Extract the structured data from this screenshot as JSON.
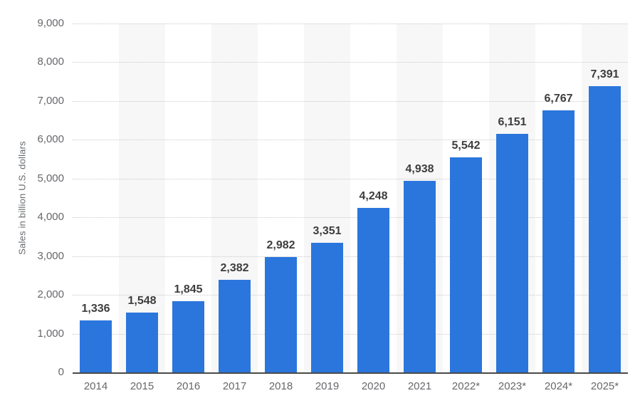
{
  "chart_data": {
    "type": "bar",
    "title": "",
    "xlabel": "",
    "ylabel": "Sales in billion U.S. dollars",
    "categories": [
      "2014",
      "2015",
      "2016",
      "2017",
      "2018",
      "2019",
      "2020",
      "2021",
      "2022*",
      "2023*",
      "2024*",
      "2025*"
    ],
    "values": [
      1336,
      1548,
      1845,
      2382,
      2982,
      3351,
      4248,
      4938,
      5542,
      6151,
      6767,
      7391
    ],
    "value_labels": [
      "1,336",
      "1,548",
      "1,845",
      "2,382",
      "2,982",
      "3,351",
      "4,248",
      "4,938",
      "5,542",
      "6,151",
      "6,767",
      "7,391"
    ],
    "ylim": [
      0,
      9000
    ],
    "ytick_step": 1000,
    "ytick_labels": [
      "0",
      "1,000",
      "2,000",
      "3,000",
      "4,000",
      "5,000",
      "6,000",
      "7,000",
      "8,000",
      "9,000"
    ],
    "grid": "horizontal-dotted",
    "legend": "none",
    "striped_columns": "every second year starting 2015",
    "colors": {
      "bar": "#2b76dc",
      "column_stripe": "#f7f7f7",
      "gridline": "#c9c9c9",
      "axis_line": "#4a4a4a",
      "tick_text": "#66676b",
      "value_text": "#3d3d3d"
    }
  }
}
